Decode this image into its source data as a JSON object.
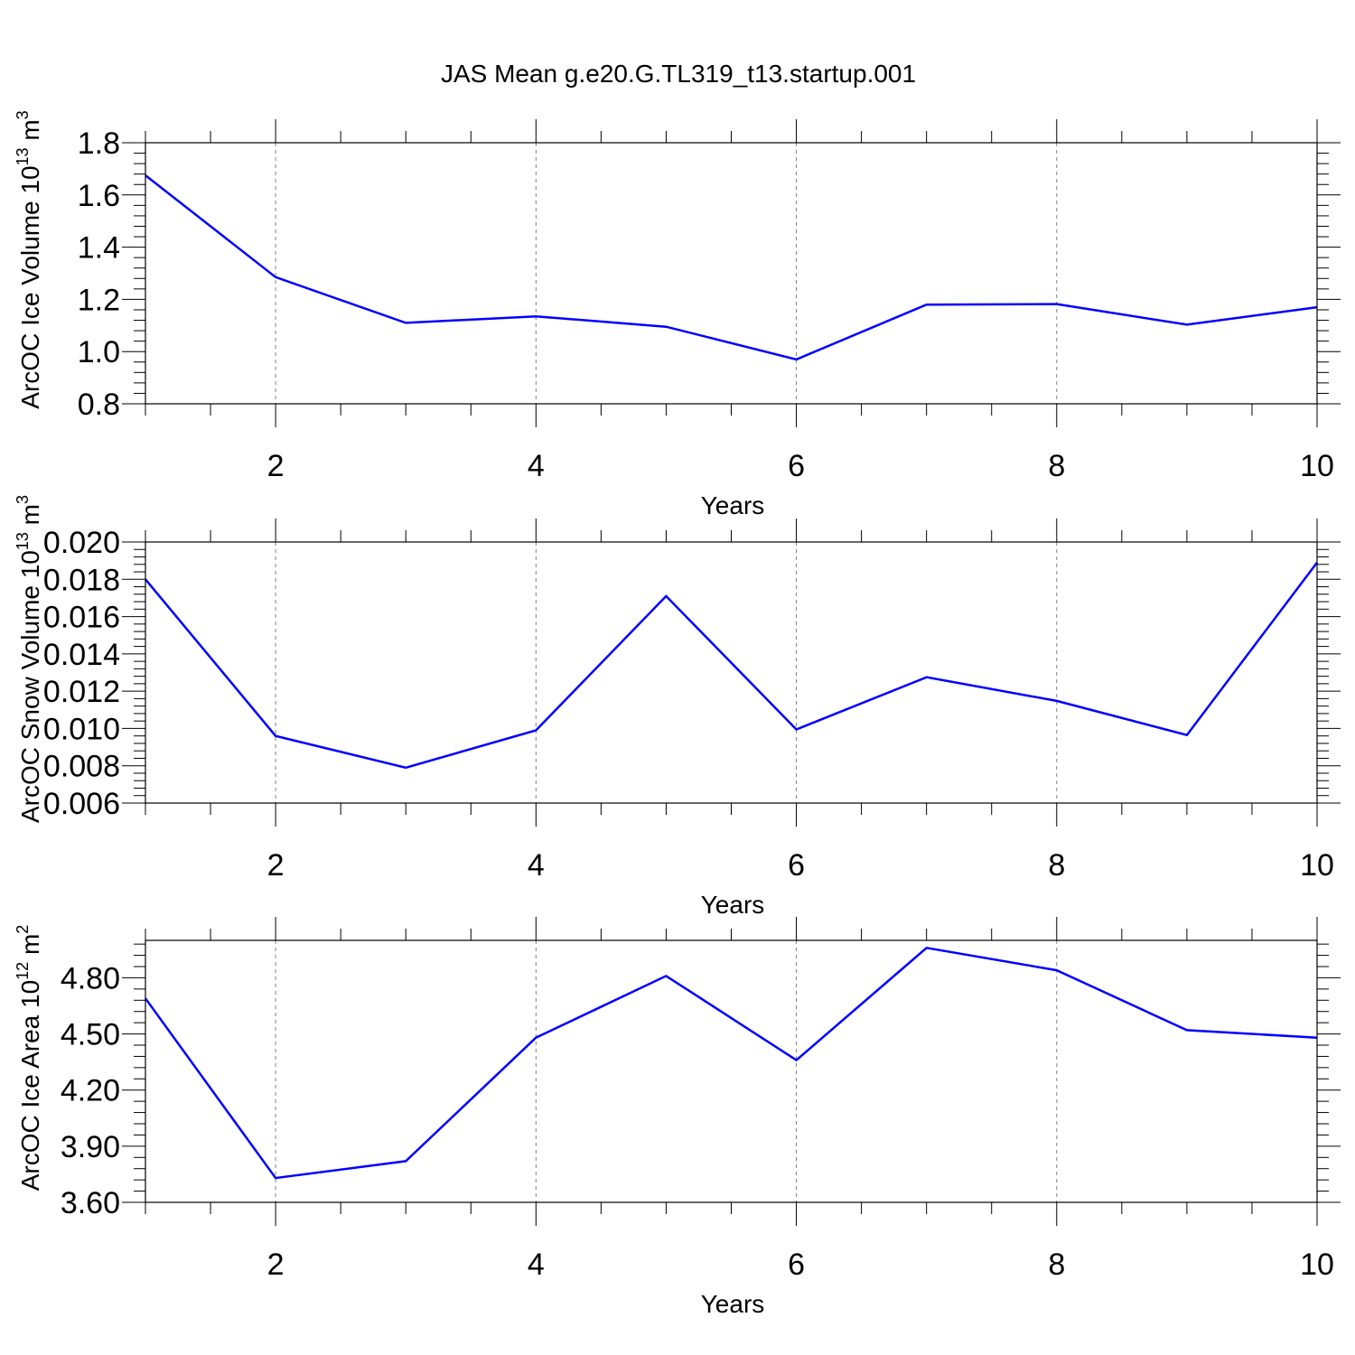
{
  "figure": {
    "title": "JAS Mean g.e20.G.TL319_t13.startup.001"
  },
  "colors": {
    "line": "#0000ff",
    "axis": "#000000",
    "grid": "#808080",
    "background": "#ffffff"
  },
  "chart_data": [
    {
      "type": "line",
      "title": "",
      "xlabel": "Years",
      "ylabel_main": "ArcOC Ice Volume 10",
      "ylabel_exp": "13",
      "ylabel_unit": " m",
      "ylabel_unit_exp": "3",
      "xlim": [
        1,
        10
      ],
      "ylim": [
        0.8,
        1.8
      ],
      "yticks": [
        0.8,
        1.0,
        1.2,
        1.4,
        1.6,
        1.8
      ],
      "ytick_labels": [
        "0.8",
        "1.0",
        "1.2",
        "1.4",
        "1.6",
        "1.8"
      ],
      "xticks": [
        2,
        4,
        6,
        8,
        10
      ],
      "xtick_labels": [
        "2",
        "4",
        "6",
        "8",
        "10"
      ],
      "grid": "vertical dashed at labeled x ticks",
      "series": [
        {
          "x": [
            1,
            2,
            3,
            4,
            5,
            6,
            7,
            8,
            9,
            10
          ],
          "y": [
            1.675,
            1.285,
            1.11,
            1.135,
            1.095,
            0.97,
            1.18,
            1.182,
            1.103,
            1.17
          ]
        }
      ]
    },
    {
      "type": "line",
      "title": "",
      "xlabel": "Years",
      "ylabel_main": "ArcOC Snow Volume 10",
      "ylabel_exp": "13",
      "ylabel_unit": " m",
      "ylabel_unit_exp": "3",
      "xlim": [
        1,
        10
      ],
      "ylim": [
        0.006,
        0.02
      ],
      "yticks": [
        0.006,
        0.008,
        0.01,
        0.012,
        0.014,
        0.016,
        0.018,
        0.02
      ],
      "ytick_labels": [
        "0.006",
        "0.008",
        "0.010",
        "0.012",
        "0.014",
        "0.016",
        "0.018",
        "0.020"
      ],
      "xticks": [
        2,
        4,
        6,
        8,
        10
      ],
      "xtick_labels": [
        "2",
        "4",
        "6",
        "8",
        "10"
      ],
      "grid": "vertical dashed at labeled x ticks",
      "series": [
        {
          "x": [
            1,
            2,
            3,
            4,
            5,
            6,
            7,
            8,
            9,
            10
          ],
          "y": [
            0.018,
            0.0096,
            0.0079,
            0.0099,
            0.0171,
            0.00995,
            0.01275,
            0.01148,
            0.00965,
            0.0189
          ]
        }
      ]
    },
    {
      "type": "line",
      "title": "",
      "xlabel": "Years",
      "ylabel_main": "ArcOC Ice Area 10",
      "ylabel_exp": "12",
      "ylabel_unit": " m",
      "ylabel_unit_exp": "2",
      "xlim": [
        1,
        10
      ],
      "ylim": [
        3.6,
        5.0
      ],
      "yticks": [
        3.6,
        3.9,
        4.2,
        4.5,
        4.8
      ],
      "ytick_labels": [
        "3.60",
        "3.90",
        "4.20",
        "4.50",
        "4.80"
      ],
      "xticks": [
        2,
        4,
        6,
        8,
        10
      ],
      "xtick_labels": [
        "2",
        "4",
        "6",
        "8",
        "10"
      ],
      "grid": "vertical dashed at labeled x ticks",
      "series": [
        {
          "x": [
            1,
            2,
            3,
            4,
            5,
            6,
            7,
            8,
            9,
            10
          ],
          "y": [
            4.69,
            3.73,
            3.82,
            4.48,
            4.81,
            4.36,
            4.96,
            4.84,
            4.52,
            4.48
          ]
        }
      ]
    }
  ]
}
